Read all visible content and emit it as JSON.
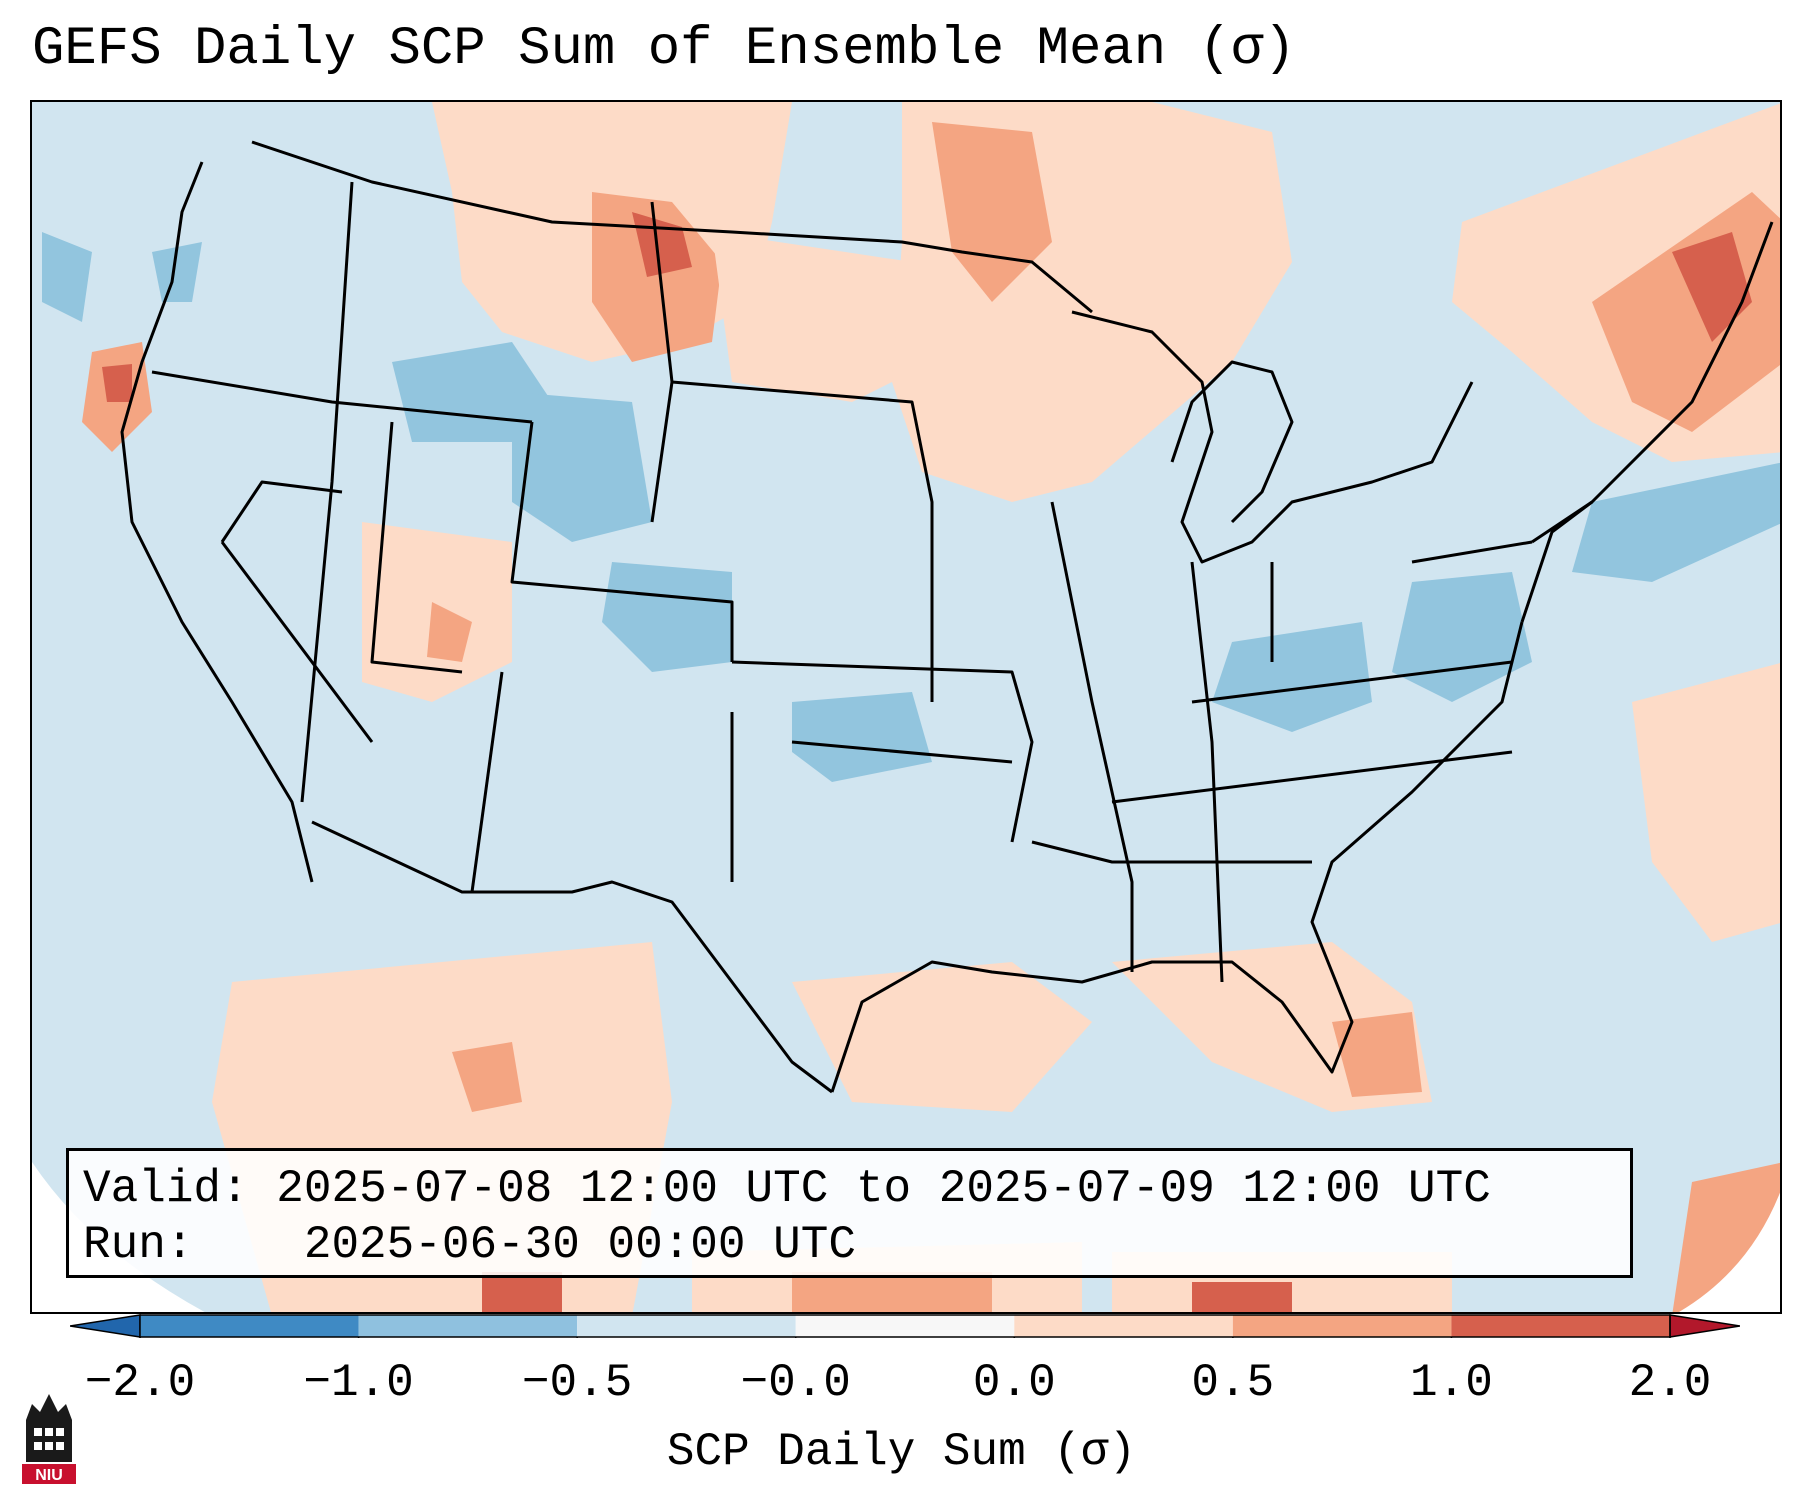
{
  "title": "GEFS Daily SCP Sum of Ensemble Mean (σ)",
  "info": {
    "valid_label": "Valid:",
    "valid_value": "2025-07-08 12:00 UTC to 2025-07-09 12:00 UTC",
    "run_label": "Run:",
    "run_value": "2025-06-30 00:00 UTC"
  },
  "colorbar": {
    "label": "SCP Daily Sum (σ)",
    "ticks": [
      "−2.0",
      "−1.0",
      "−0.5",
      "−0.0",
      "0.0",
      "0.5",
      "1.0",
      "2.0"
    ],
    "bins": [
      {
        "range": [
          -2.0,
          -1.0
        ],
        "color": "#3f8ac4"
      },
      {
        "range": [
          -1.0,
          -0.5
        ],
        "color": "#8fc1df"
      },
      {
        "range": [
          -0.5,
          -0.0
        ],
        "color": "#d1e5f0"
      },
      {
        "range": [
          -0.0,
          0.0
        ],
        "color": "#f7f7f7"
      },
      {
        "range": [
          0.0,
          0.5
        ],
        "color": "#fddbc7"
      },
      {
        "range": [
          0.5,
          1.0
        ],
        "color": "#f4a582"
      },
      {
        "range": [
          1.0,
          2.0
        ],
        "color": "#d6604d"
      }
    ],
    "extend_low_color": "#2166ac",
    "extend_high_color": "#b2182b"
  },
  "logo": {
    "text": "NIU",
    "color": "#c8102e"
  },
  "colors": {
    "neutral_negative": "#d1e5f0",
    "moderate_negative": "#92c5de",
    "weak_positive": "#fddbc7",
    "moderate_positive": "#f4a582",
    "strong_positive": "#d6604d"
  }
}
